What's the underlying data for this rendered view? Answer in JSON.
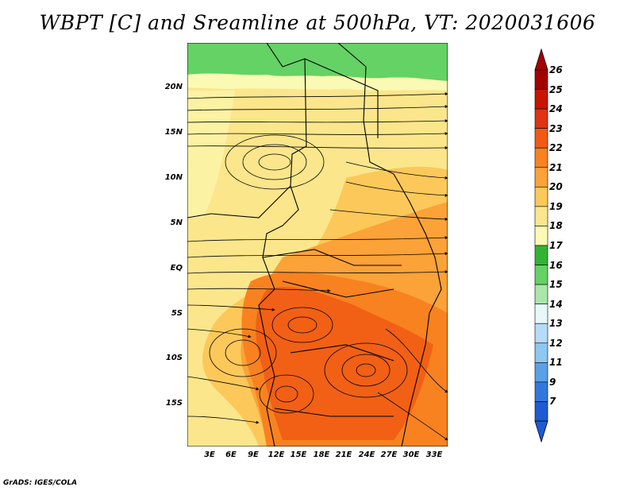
{
  "title": "WBPT [C] and Sreamline at 500hPa, VT: 2020031606",
  "credit": "GrADS: IGES/COLA",
  "y_axis_labels": [
    "20N",
    "15N",
    "10N",
    "5N",
    "EQ",
    "5S",
    "10S",
    "15S"
  ],
  "x_axis_labels": [
    "3E",
    "6E",
    "9E",
    "12E",
    "15E",
    "18E",
    "21E",
    "24E",
    "27E",
    "30E",
    "33E"
  ],
  "colorbar": {
    "labels": [
      "26",
      "25",
      "24",
      "23",
      "22",
      "21",
      "20",
      "19",
      "18",
      "17",
      "16",
      "15",
      "14",
      "13",
      "12",
      "11",
      "9",
      "7"
    ],
    "colors": [
      "#a50000",
      "#c81400",
      "#e03214",
      "#f05a14",
      "#f88220",
      "#fba238",
      "#fcc85a",
      "#fce68c",
      "#fafab4",
      "#32b432",
      "#64d264",
      "#aae6aa",
      "#e6f8f8",
      "#b4dcf8",
      "#8cc8f0",
      "#5aa0e6",
      "#3278dc",
      "#1e5ad2"
    ]
  }
}
